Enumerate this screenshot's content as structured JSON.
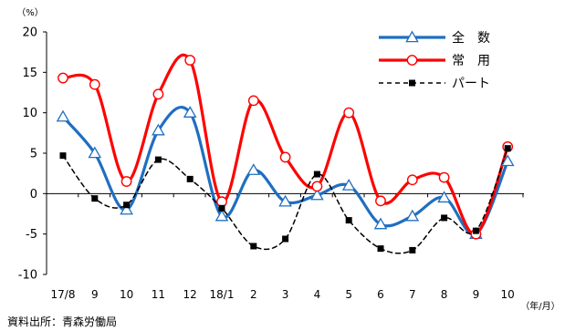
{
  "chart_data": {
    "type": "line",
    "y_unit": "（%）",
    "x_unit": "（年/月）",
    "categories": [
      "17/8",
      "9",
      "10",
      "11",
      "12",
      "18/1",
      "2",
      "3",
      "4",
      "5",
      "6",
      "7",
      "8",
      "9",
      "10"
    ],
    "ylim": [
      -10,
      20
    ],
    "yticks": [
      -10,
      -5,
      0,
      5,
      10,
      15,
      20
    ],
    "grid": false,
    "legend_position": "top-right",
    "series": [
      {
        "name": "全　数",
        "color": "#1f6fc0",
        "line_style": "solid",
        "marker": "triangle-open",
        "values": [
          9.5,
          5.0,
          -2.0,
          7.8,
          10.0,
          -2.8,
          2.9,
          -1.0,
          -0.2,
          1.0,
          -3.8,
          -2.8,
          -0.5,
          -5.0,
          4.0
        ]
      },
      {
        "name": "常　用",
        "color": "#ff0000",
        "line_style": "solid",
        "marker": "circle-open",
        "values": [
          14.3,
          13.5,
          1.5,
          12.3,
          16.5,
          -1.0,
          11.5,
          4.5,
          0.9,
          10.0,
          -0.9,
          1.7,
          2.0,
          -5.0,
          5.8
        ]
      },
      {
        "name": "パート",
        "color": "#000000",
        "line_style": "dashed",
        "marker": "square-filled",
        "values": [
          4.7,
          -0.6,
          -1.4,
          4.2,
          1.8,
          -1.8,
          -6.5,
          -5.6,
          2.4,
          -3.3,
          -6.8,
          -7.0,
          -3.0,
          -4.6,
          5.6
        ]
      }
    ]
  },
  "source_note": "資料出所：青森労働局"
}
